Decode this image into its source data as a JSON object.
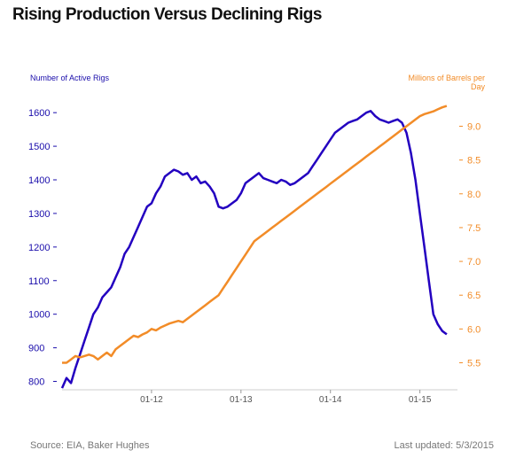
{
  "chart_data": {
    "type": "line",
    "title": "Rising Production Versus Declining Rigs",
    "left_axis": {
      "label": "Number of Active Rigs",
      "ticks": [
        800,
        900,
        1000,
        1100,
        1200,
        1300,
        1400,
        1500,
        1600
      ],
      "range": [
        775,
        1640
      ],
      "color": "#1a0dab"
    },
    "right_axis": {
      "label": "Millions of Barrels per Day",
      "ticks": [
        5.5,
        6.0,
        6.5,
        7.0,
        7.5,
        8.0,
        8.5,
        9.0
      ],
      "tick_labels": [
        "5.5",
        "6.0",
        "6.5",
        "7.0",
        "7.5",
        "8.0",
        "8.5",
        "9.0"
      ],
      "range": [
        5.1,
        9.4
      ],
      "color": "#f28c28"
    },
    "x_axis": {
      "ticks": [
        "01-12",
        "01-13",
        "01-14",
        "01-15"
      ],
      "tick_positions": [
        2012.0,
        2013.0,
        2014.0,
        2015.0
      ],
      "range": [
        2011.0,
        2015.42
      ]
    },
    "grid": false,
    "series": [
      {
        "name": "Number of Active Rigs",
        "axis": "left",
        "color": "#2300c0",
        "x": [
          2011.0,
          2011.05,
          2011.1,
          2011.15,
          2011.2,
          2011.25,
          2011.3,
          2011.35,
          2011.4,
          2011.45,
          2011.5,
          2011.55,
          2011.6,
          2011.65,
          2011.7,
          2011.75,
          2011.8,
          2011.85,
          2011.9,
          2011.95,
          2012.0,
          2012.05,
          2012.1,
          2012.15,
          2012.2,
          2012.25,
          2012.3,
          2012.35,
          2012.4,
          2012.45,
          2012.5,
          2012.55,
          2012.6,
          2012.65,
          2012.7,
          2012.75,
          2012.8,
          2012.85,
          2012.9,
          2012.95,
          2013.0,
          2013.05,
          2013.1,
          2013.15,
          2013.2,
          2013.25,
          2013.3,
          2013.35,
          2013.4,
          2013.45,
          2013.5,
          2013.55,
          2013.6,
          2013.65,
          2013.7,
          2013.75,
          2013.8,
          2013.85,
          2013.9,
          2013.95,
          2014.0,
          2014.05,
          2014.1,
          2014.15,
          2014.2,
          2014.25,
          2014.3,
          2014.35,
          2014.4,
          2014.45,
          2014.5,
          2014.55,
          2014.6,
          2014.65,
          2014.7,
          2014.75,
          2014.8,
          2014.85,
          2014.9,
          2014.95,
          2015.0,
          2015.05,
          2015.1,
          2015.15,
          2015.2,
          2015.25,
          2015.3
        ],
        "values": [
          780,
          810,
          795,
          840,
          880,
          920,
          960,
          1000,
          1020,
          1050,
          1065,
          1080,
          1110,
          1140,
          1180,
          1200,
          1230,
          1260,
          1290,
          1320,
          1330,
          1360,
          1380,
          1410,
          1420,
          1430,
          1425,
          1415,
          1420,
          1400,
          1410,
          1390,
          1395,
          1380,
          1360,
          1320,
          1315,
          1320,
          1330,
          1340,
          1360,
          1390,
          1400,
          1410,
          1420,
          1405,
          1400,
          1395,
          1390,
          1400,
          1395,
          1385,
          1390,
          1400,
          1410,
          1420,
          1440,
          1460,
          1480,
          1500,
          1520,
          1540,
          1550,
          1560,
          1570,
          1575,
          1580,
          1590,
          1600,
          1605,
          1590,
          1580,
          1575,
          1570,
          1575,
          1580,
          1570,
          1540,
          1480,
          1400,
          1300,
          1200,
          1100,
          1000,
          970,
          950,
          940
        ]
      },
      {
        "name": "Millions of Barrels per Day",
        "axis": "right",
        "color": "#f28c28",
        "x": [
          2011.0,
          2011.05,
          2011.1,
          2011.15,
          2011.2,
          2011.25,
          2011.3,
          2011.35,
          2011.4,
          2011.45,
          2011.5,
          2011.55,
          2011.6,
          2011.65,
          2011.7,
          2011.75,
          2011.8,
          2011.85,
          2011.9,
          2011.95,
          2012.0,
          2012.05,
          2012.1,
          2012.15,
          2012.2,
          2012.25,
          2012.3,
          2012.35,
          2012.4,
          2012.45,
          2012.5,
          2012.55,
          2012.6,
          2012.65,
          2012.7,
          2012.75,
          2012.8,
          2012.85,
          2012.9,
          2012.95,
          2013.0,
          2013.05,
          2013.1,
          2013.15,
          2013.2,
          2013.25,
          2013.3,
          2013.35,
          2013.4,
          2013.45,
          2013.5,
          2013.55,
          2013.6,
          2013.65,
          2013.7,
          2013.75,
          2013.8,
          2013.85,
          2013.9,
          2013.95,
          2014.0,
          2014.05,
          2014.1,
          2014.15,
          2014.2,
          2014.25,
          2014.3,
          2014.35,
          2014.4,
          2014.45,
          2014.5,
          2014.55,
          2014.6,
          2014.65,
          2014.7,
          2014.75,
          2014.8,
          2014.85,
          2014.9,
          2014.95,
          2015.0,
          2015.05,
          2015.1,
          2015.15,
          2015.2,
          2015.25,
          2015.3
        ],
        "values": [
          5.5,
          5.5,
          5.55,
          5.6,
          5.58,
          5.6,
          5.62,
          5.6,
          5.55,
          5.6,
          5.65,
          5.6,
          5.7,
          5.75,
          5.8,
          5.85,
          5.9,
          5.88,
          5.92,
          5.95,
          6.0,
          5.98,
          6.02,
          6.05,
          6.08,
          6.1,
          6.12,
          6.1,
          6.15,
          6.2,
          6.25,
          6.3,
          6.35,
          6.4,
          6.45,
          6.5,
          6.6,
          6.7,
          6.8,
          6.9,
          7.0,
          7.1,
          7.2,
          7.3,
          7.35,
          7.4,
          7.45,
          7.5,
          7.55,
          7.6,
          7.65,
          7.7,
          7.75,
          7.8,
          7.85,
          7.9,
          7.95,
          8.0,
          8.05,
          8.1,
          8.15,
          8.2,
          8.25,
          8.3,
          8.35,
          8.4,
          8.45,
          8.5,
          8.55,
          8.6,
          8.65,
          8.7,
          8.75,
          8.8,
          8.85,
          8.9,
          8.95,
          9.0,
          9.05,
          9.1,
          9.15,
          9.18,
          9.2,
          9.22,
          9.25,
          9.28,
          9.3
        ]
      }
    ]
  },
  "footer": {
    "source": "Source: EIA, Baker Hughes",
    "updated": "Last updated: 5/3/2015"
  }
}
